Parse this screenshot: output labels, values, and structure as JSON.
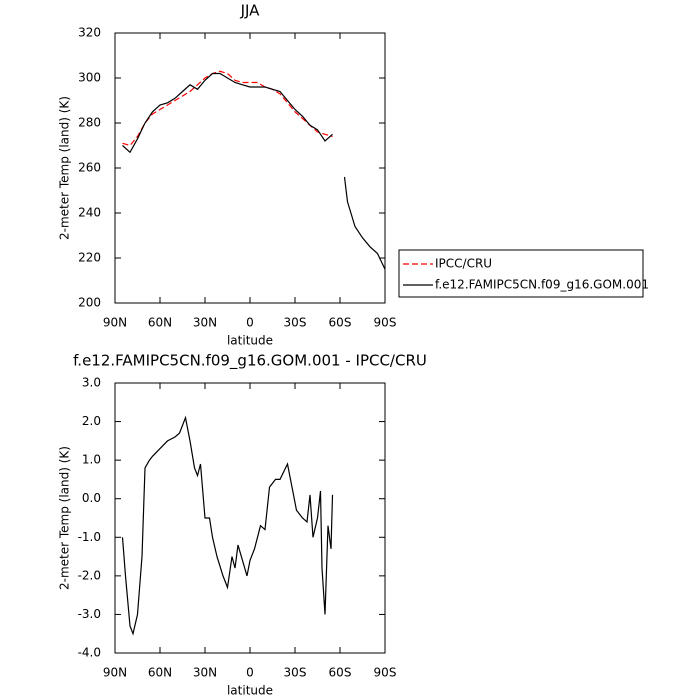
{
  "chart_data": [
    {
      "type": "line",
      "title": "JJA",
      "xlabel": "latitude",
      "ylabel": "2-meter Temp (land) (K)",
      "x": [
        85,
        80,
        75,
        70,
        65,
        60,
        55,
        50,
        45,
        40,
        35,
        30,
        25,
        20,
        15,
        10,
        5,
        0,
        -5,
        -10,
        -15,
        -20,
        -25,
        -30,
        -35,
        -40,
        -45,
        -50,
        -55,
        -60,
        -63,
        -65,
        -70,
        -75,
        -80,
        -85,
        -90
      ],
      "xlim": [
        90,
        -90
      ],
      "xticks": [
        {
          "value": 90,
          "label": "90N"
        },
        {
          "value": 60,
          "label": "60N"
        },
        {
          "value": 30,
          "label": "30N"
        },
        0,
        {
          "value": -30,
          "label": "30S"
        },
        {
          "value": -60,
          "label": "60S"
        },
        {
          "value": -90,
          "label": "90S"
        }
      ],
      "ylim": [
        200,
        320
      ],
      "yticks": [
        200,
        220,
        240,
        260,
        280,
        300,
        320
      ],
      "legend": "outside-right",
      "series": [
        {
          "name": "IPCC/CRU",
          "color": "#ff0000",
          "line_style": "dashed",
          "values": [
            271,
            270,
            274,
            280,
            284,
            286,
            288,
            290,
            292,
            294,
            297,
            300,
            302,
            303,
            302,
            299,
            298,
            298,
            298,
            296,
            295,
            293,
            289,
            285,
            282,
            279,
            276,
            275,
            274,
            null,
            null,
            null,
            null,
            null,
            null,
            null,
            null
          ]
        },
        {
          "name": "f.e12.FAMIPC5CN.f09_g16.GOM.001",
          "color": "#000000",
          "line_style": "solid",
          "values": [
            270,
            267,
            273,
            280,
            285,
            288,
            289,
            291,
            294,
            297,
            295,
            299,
            302,
            302,
            300,
            298,
            297,
            296,
            296,
            296,
            295,
            294,
            290,
            286,
            283,
            279,
            277,
            272,
            275,
            null,
            256,
            245,
            234,
            229,
            225,
            222,
            215
          ]
        }
      ]
    },
    {
      "type": "line",
      "title": "f.e12.FAMIPC5CN.f09_g16.GOM.001 - IPCC/CRU",
      "xlabel": "latitude",
      "ylabel": "2-meter Temp (land) (K)",
      "x": [
        85,
        83,
        80,
        78,
        75,
        72,
        70,
        67,
        65,
        60,
        55,
        50,
        47,
        45,
        43,
        40,
        37,
        35,
        33,
        30,
        27,
        25,
        22,
        18,
        15,
        12,
        10,
        8,
        5,
        2,
        0,
        -3,
        -7,
        -10,
        -13,
        -17,
        -20,
        -25,
        -28,
        -31,
        -35,
        -38,
        -40,
        -42,
        -45,
        -47,
        -48,
        -50,
        -52,
        -54,
        -55
      ],
      "xlim": [
        90,
        -90
      ],
      "xticks": [
        {
          "value": 90,
          "label": "90N"
        },
        {
          "value": 60,
          "label": "60N"
        },
        {
          "value": 30,
          "label": "30N"
        },
        0,
        {
          "value": -30,
          "label": "30S"
        },
        {
          "value": -60,
          "label": "60S"
        },
        {
          "value": -90,
          "label": "90S"
        }
      ],
      "ylim": [
        -4,
        3
      ],
      "yticks": [
        {
          "value": -4,
          "label": "-4.0"
        },
        {
          "value": -3,
          "label": "-3.0"
        },
        {
          "value": -2,
          "label": "-2.0"
        },
        {
          "value": -1,
          "label": "-1.0"
        },
        {
          "value": 0,
          "label": "0.0"
        },
        {
          "value": 1,
          "label": "1.0"
        },
        {
          "value": 2,
          "label": "2.0"
        },
        {
          "value": 3,
          "label": "3.0"
        }
      ],
      "series": [
        {
          "color": "#000000",
          "line_style": "solid",
          "values": [
            -1.0,
            -2.0,
            -3.3,
            -3.5,
            -3.0,
            -1.5,
            0.8,
            1.0,
            1.1,
            1.3,
            1.5,
            1.6,
            1.7,
            1.9,
            2.1,
            1.5,
            0.8,
            0.6,
            0.9,
            -0.5,
            -0.5,
            -1.0,
            -1.5,
            -2.0,
            -2.3,
            -1.5,
            -1.8,
            -1.2,
            -1.6,
            -2.0,
            -1.6,
            -1.3,
            -0.7,
            -0.8,
            0.3,
            0.5,
            0.5,
            0.9,
            0.3,
            -0.3,
            -0.5,
            -0.6,
            0.1,
            -1.0,
            -0.5,
            0.2,
            -1.8,
            -3.0,
            -0.7,
            -1.3,
            0.1
          ]
        }
      ]
    }
  ]
}
